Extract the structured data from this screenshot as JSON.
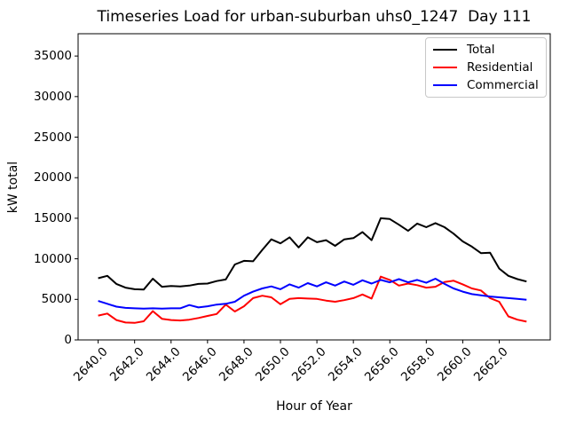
{
  "figure": {
    "background": "#ffffff",
    "axes_color": "#000000",
    "legend_border_color": "#c8c8c8"
  },
  "chart_data": {
    "type": "line",
    "title": "Timeseries Load for urban-suburban uhs0_1247  Day 111",
    "xlabel": "Hour of Year",
    "ylabel": "kW total",
    "xlim": [
      2638.9,
      2664.8
    ],
    "ylim": [
      0,
      37750
    ],
    "grid": false,
    "legend_position": "upper right",
    "x_tick_labels": [
      "2640.0",
      "2642.0",
      "2644.0",
      "2646.0",
      "2648.0",
      "2650.0",
      "2652.0",
      "2654.0",
      "2656.0",
      "2658.0",
      "2660.0",
      "2662.0"
    ],
    "y_ticks": [
      0,
      5000,
      10000,
      15000,
      20000,
      25000,
      30000,
      35000
    ],
    "x": [
      2640.0,
      2640.5,
      2641.0,
      2641.5,
      2642.0,
      2642.5,
      2643.0,
      2643.5,
      2644.0,
      2644.5,
      2645.0,
      2645.5,
      2646.0,
      2646.5,
      2647.0,
      2647.5,
      2648.0,
      2648.5,
      2649.0,
      2649.5,
      2650.0,
      2650.5,
      2651.0,
      2651.5,
      2652.0,
      2652.5,
      2653.0,
      2653.5,
      2654.0,
      2654.5,
      2655.0,
      2655.5,
      2656.0,
      2656.5,
      2657.0,
      2657.5,
      2658.0,
      2658.5,
      2659.0,
      2659.5,
      2660.0,
      2660.5,
      2661.0,
      2661.5,
      2662.0,
      2662.5,
      2663.0,
      2663.5
    ],
    "series": [
      {
        "name": "Total",
        "color": "#000000",
        "values": [
          7600,
          7900,
          6900,
          6450,
          6250,
          6200,
          7550,
          6550,
          6650,
          6600,
          6700,
          6900,
          6950,
          7250,
          7450,
          9300,
          9750,
          9700,
          11100,
          12400,
          11900,
          12650,
          11400,
          12650,
          12050,
          12300,
          11600,
          12400,
          12550,
          13300,
          12300,
          15000,
          14900,
          14200,
          13450,
          14350,
          13900,
          14400,
          13900,
          13100,
          12150,
          11500,
          10700,
          10750,
          8800,
          7900,
          7500,
          7200
        ]
      },
      {
        "name": "Residential",
        "color": "#ff0000",
        "values": [
          3000,
          3250,
          2450,
          2150,
          2100,
          2300,
          3550,
          2600,
          2450,
          2400,
          2500,
          2700,
          2950,
          3200,
          4350,
          3500,
          4150,
          5150,
          5450,
          5250,
          4400,
          5050,
          5150,
          5100,
          5050,
          4850,
          4700,
          4900,
          5150,
          5600,
          5100,
          7800,
          7400,
          6700,
          6950,
          6750,
          6450,
          6550,
          7150,
          7300,
          6850,
          6350,
          6100,
          5150,
          4700,
          2900,
          2500,
          2250
        ]
      },
      {
        "name": "Commercial",
        "color": "#0000ff",
        "values": [
          4800,
          4450,
          4100,
          3950,
          3900,
          3850,
          3900,
          3850,
          3900,
          3900,
          4300,
          4000,
          4150,
          4350,
          4450,
          4700,
          5450,
          5950,
          6350,
          6600,
          6250,
          6850,
          6450,
          7000,
          6600,
          7100,
          6700,
          7200,
          6800,
          7350,
          6950,
          7400,
          7100,
          7500,
          7100,
          7400,
          7050,
          7550,
          6900,
          6350,
          5950,
          5650,
          5500,
          5350,
          5250,
          5150,
          5050,
          4950
        ]
      }
    ]
  }
}
